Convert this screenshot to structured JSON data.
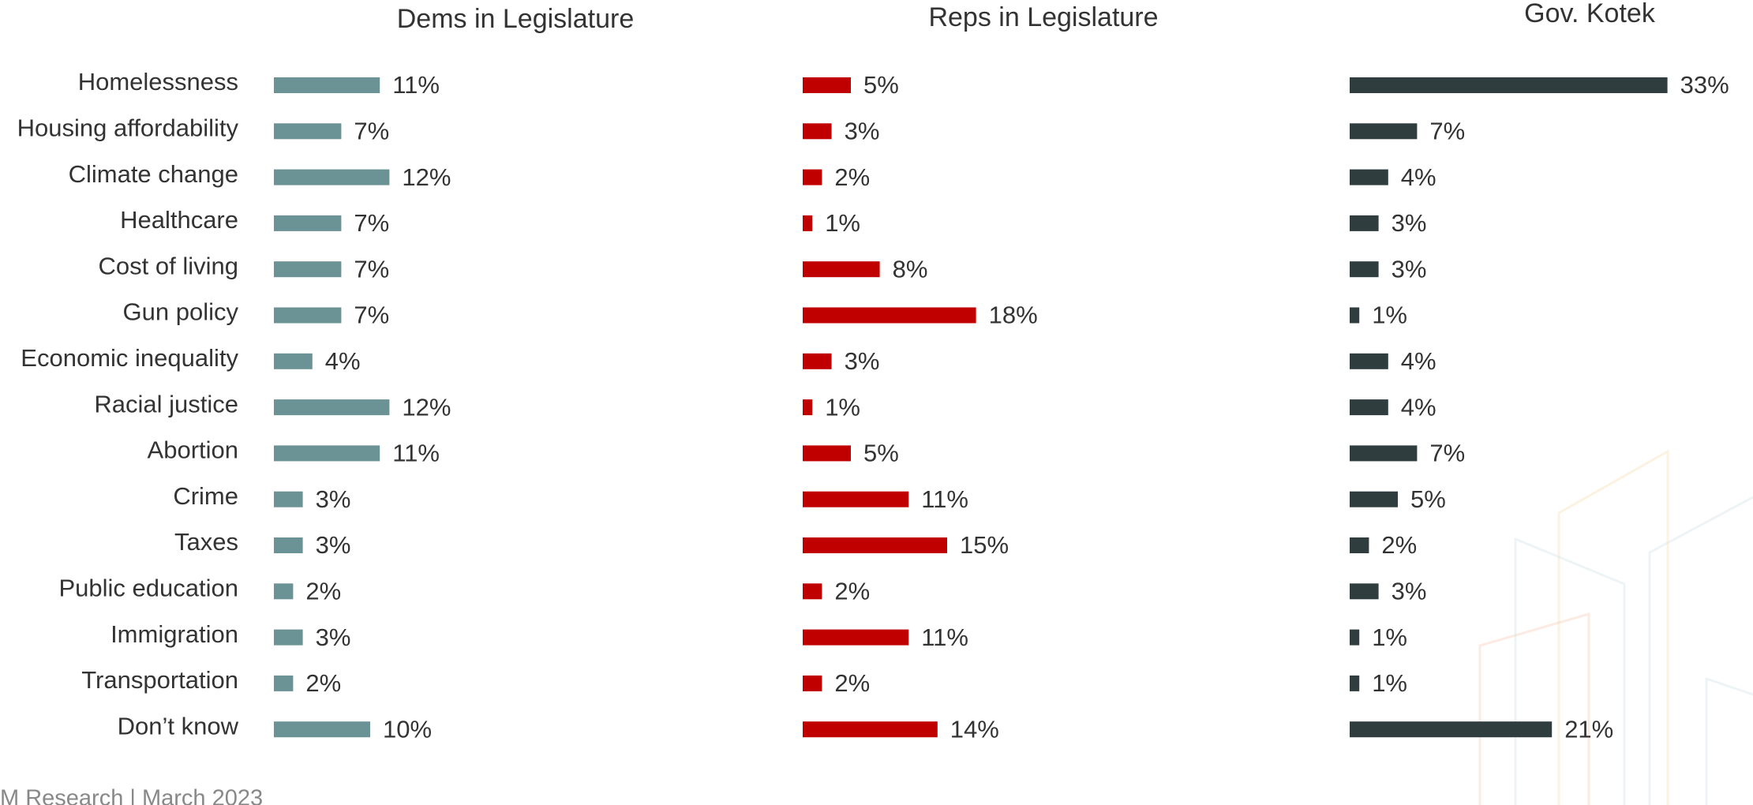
{
  "chart_data": {
    "type": "bar",
    "categories": [
      "Homelessness",
      "Housing affordability",
      "Climate change",
      "Healthcare",
      "Cost of living",
      "Gun policy",
      "Economic inequality",
      "Racial justice",
      "Abortion",
      "Crime",
      "Taxes",
      "Public education",
      "Immigration",
      "Transportation",
      "Don’t know"
    ],
    "series": [
      {
        "name": "Dems in Legislature",
        "color": "#6b9294",
        "values": [
          11,
          7,
          12,
          7,
          7,
          7,
          4,
          12,
          11,
          3,
          3,
          2,
          3,
          2,
          10
        ],
        "value_labels": [
          "11%",
          "7%",
          "12%",
          "7%",
          "7%",
          "7%",
          "4%",
          "12%",
          "11%",
          "3%",
          "3%",
          "2%",
          "3%",
          "2%",
          "10%"
        ]
      },
      {
        "name": "Reps in Legislature",
        "color": "#c00000",
        "values": [
          5,
          3,
          2,
          1,
          8,
          18,
          3,
          1,
          5,
          11,
          15,
          2,
          11,
          2,
          14
        ],
        "value_labels": [
          "5%",
          "3%",
          "2%",
          "1%",
          "8%",
          "18%",
          "3%",
          "1%",
          "5%",
          "11%",
          "15%",
          "2%",
          "11%",
          "2%",
          "14%"
        ]
      },
      {
        "name": "Gov. Kotek",
        "color": "#2f3d3f",
        "values": [
          33,
          7,
          4,
          3,
          3,
          1,
          4,
          4,
          7,
          5,
          2,
          3,
          1,
          1,
          21
        ],
        "value_labels": [
          "33%",
          "7%",
          "4%",
          "3%",
          "3%",
          "1%",
          "4%",
          "4%",
          "7%",
          "5%",
          "2%",
          "3%",
          "1%",
          "1%",
          "21%"
        ]
      }
    ],
    "footer": "M Research | March 2023"
  }
}
